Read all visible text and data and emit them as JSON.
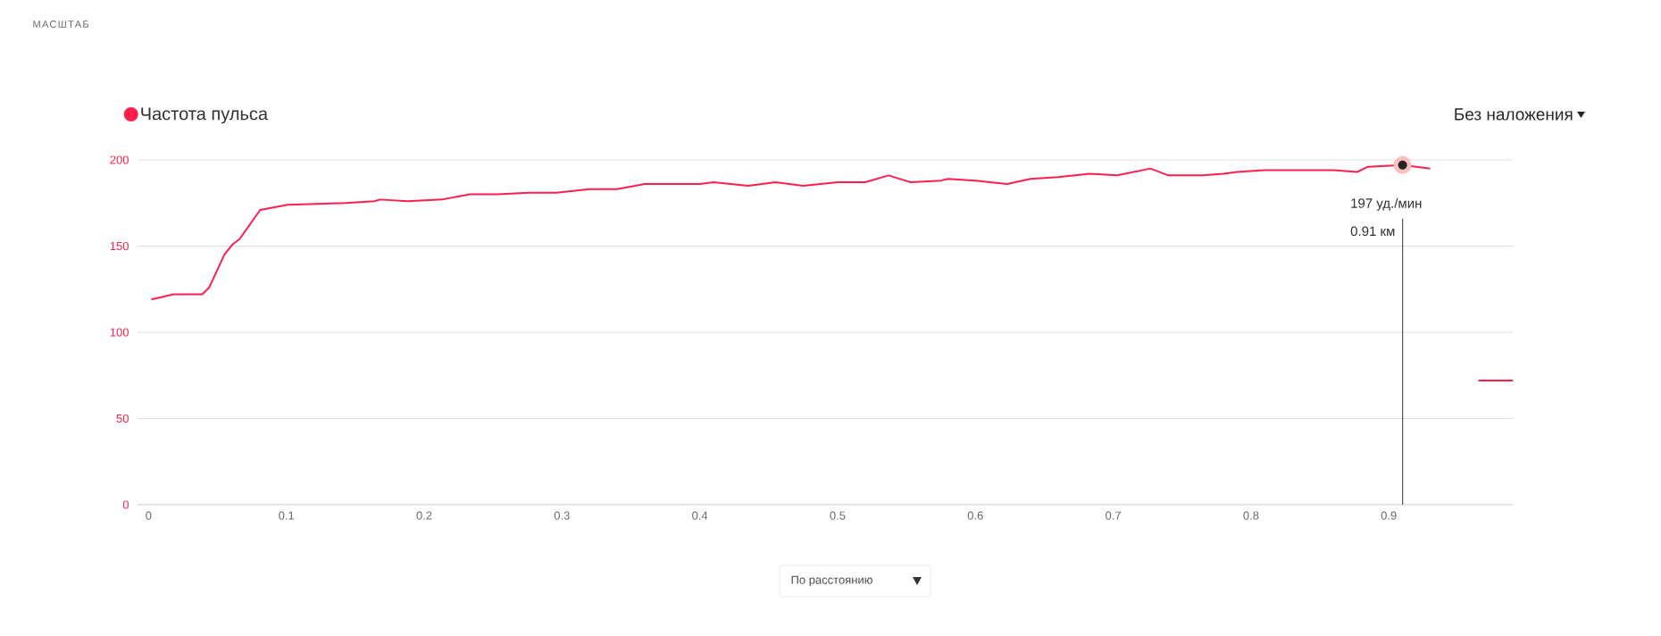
{
  "chart_data": {
    "type": "line",
    "title": "МАСШТАБ",
    "x": [
      0.002,
      0.018,
      0.039,
      0.044,
      0.055,
      0.061,
      0.066,
      0.081,
      0.101,
      0.143,
      0.164,
      0.168,
      0.188,
      0.213,
      0.233,
      0.253,
      0.276,
      0.296,
      0.32,
      0.34,
      0.36,
      0.4,
      0.41,
      0.435,
      0.455,
      0.475,
      0.5,
      0.52,
      0.537,
      0.553,
      0.575,
      0.58,
      0.6,
      0.623,
      0.64,
      0.66,
      0.683,
      0.703,
      0.727,
      0.74,
      0.765,
      0.78,
      0.79,
      0.81,
      0.86,
      0.877,
      0.885,
      0.91,
      0.93,
      0.95,
      0.965,
      0.99
    ],
    "series": [
      {
        "name": "Частота пульса",
        "color": "#ff1f4f",
        "values": [
          119,
          122,
          122,
          126,
          145,
          151,
          154,
          171,
          174,
          175,
          176,
          177,
          176,
          177,
          180,
          180,
          181,
          181,
          183,
          183,
          186,
          186,
          187,
          185,
          187,
          185,
          187,
          187,
          191,
          187,
          188,
          189,
          188,
          186,
          189,
          190,
          192,
          191,
          195,
          191,
          191,
          192,
          193,
          194,
          194,
          193,
          196,
          197,
          195,
          null,
          72,
          72
        ]
      }
    ],
    "xlim": [
      -0.008,
      0.99
    ],
    "xticks": [
      0,
      0.1,
      0.2,
      0.3,
      0.4,
      0.5,
      0.6,
      0.7,
      0.8,
      0.9
    ],
    "ylim": [
      0,
      200
    ],
    "yticks": [
      0,
      50,
      100,
      150,
      200
    ],
    "grid": "y",
    "legend": "top left",
    "ref_lines": [
      {
        "axis": "x",
        "value": 0.91,
        "color": "#555555"
      }
    ],
    "annotations": [
      "Без наложения",
      "По расстоянию",
      {
        "text": "197 уд./мин",
        "x": 0.91,
        "y": 197
      },
      "0.91 км"
    ]
  }
}
